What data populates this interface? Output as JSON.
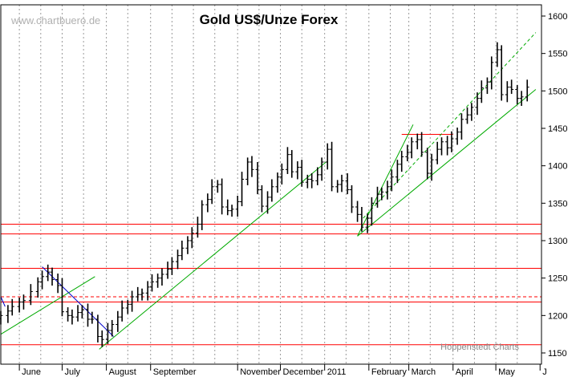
{
  "chart_data": {
    "type": "ohlc",
    "title": "Gold US$/Unze Forex",
    "watermark": "www.chartbuero.de",
    "footer": "Hoppenstedt Charts",
    "ylim": [
      1135,
      1615
    ],
    "yticks": [
      1150,
      1200,
      1250,
      1300,
      1350,
      1400,
      1450,
      1500,
      1550,
      1600
    ],
    "grid": "vertical-dashed",
    "x_labels": [
      "June",
      "July",
      "August",
      "September",
      "November",
      "December",
      "2011",
      "February",
      "March",
      "April",
      "May",
      "J"
    ],
    "colors": {
      "bars": "#000000",
      "support_lines": "#ff0000",
      "trend_lines": "#00aa00",
      "down_trend": "#0000cc"
    },
    "horizontal_levels": [
      1161,
      1218,
      1225,
      1263,
      1309,
      1322
    ],
    "support_segments": [
      {
        "from": "2011-02-24",
        "to": "2011-04-01",
        "y": 1442
      }
    ],
    "series": [
      {
        "values": [
          [
            "2010-05-19",
            1200
          ],
          [
            "2010-05-24",
            1206
          ],
          [
            "2010-05-27",
            1212
          ],
          [
            "2010-06-01",
            1218
          ],
          [
            "2010-06-04",
            1220
          ],
          [
            "2010-06-09",
            1232
          ],
          [
            "2010-06-14",
            1245
          ],
          [
            "2010-06-17",
            1252
          ],
          [
            "2010-06-21",
            1258
          ],
          [
            "2010-06-24",
            1248
          ],
          [
            "2010-06-28",
            1240
          ],
          [
            "2010-07-01",
            1205
          ],
          [
            "2010-07-05",
            1200
          ],
          [
            "2010-07-08",
            1198
          ],
          [
            "2010-07-12",
            1204
          ],
          [
            "2010-07-15",
            1208
          ],
          [
            "2010-07-19",
            1195
          ],
          [
            "2010-07-22",
            1195
          ],
          [
            "2010-07-26",
            1172
          ],
          [
            "2010-07-29",
            1168
          ],
          [
            "2010-08-02",
            1180
          ],
          [
            "2010-08-05",
            1188
          ],
          [
            "2010-08-09",
            1198
          ],
          [
            "2010-08-12",
            1210
          ],
          [
            "2010-08-16",
            1215
          ],
          [
            "2010-08-19",
            1225
          ],
          [
            "2010-08-23",
            1228
          ],
          [
            "2010-08-26",
            1230
          ],
          [
            "2010-08-30",
            1238
          ],
          [
            "2010-09-02",
            1245
          ],
          [
            "2010-09-06",
            1250
          ],
          [
            "2010-09-09",
            1255
          ],
          [
            "2010-09-13",
            1262
          ],
          [
            "2010-09-16",
            1272
          ],
          [
            "2010-09-20",
            1280
          ],
          [
            "2010-09-23",
            1290
          ],
          [
            "2010-09-27",
            1300
          ],
          [
            "2010-09-30",
            1310
          ],
          [
            "2010-10-04",
            1322
          ],
          [
            "2010-10-07",
            1348
          ],
          [
            "2010-10-11",
            1355
          ],
          [
            "2010-10-14",
            1372
          ],
          [
            "2010-10-18",
            1375
          ],
          [
            "2010-10-21",
            1345
          ],
          [
            "2010-10-25",
            1340
          ],
          [
            "2010-10-28",
            1342
          ],
          [
            "2010-11-01",
            1352
          ],
          [
            "2010-11-04",
            1382
          ],
          [
            "2010-11-08",
            1405
          ],
          [
            "2010-11-11",
            1395
          ],
          [
            "2010-11-15",
            1368
          ],
          [
            "2010-11-18",
            1346
          ],
          [
            "2010-11-22",
            1358
          ],
          [
            "2010-11-25",
            1372
          ],
          [
            "2010-11-29",
            1385
          ],
          [
            "2010-12-02",
            1395
          ],
          [
            "2010-12-06",
            1415
          ],
          [
            "2010-12-09",
            1392
          ],
          [
            "2010-12-13",
            1398
          ],
          [
            "2010-12-16",
            1378
          ],
          [
            "2010-12-20",
            1382
          ],
          [
            "2010-12-23",
            1380
          ],
          [
            "2010-12-27",
            1388
          ],
          [
            "2010-12-30",
            1405
          ],
          [
            "2011-01-03",
            1422
          ],
          [
            "2011-01-06",
            1372
          ],
          [
            "2011-01-10",
            1375
          ],
          [
            "2011-01-13",
            1380
          ],
          [
            "2011-01-17",
            1368
          ],
          [
            "2011-01-20",
            1345
          ],
          [
            "2011-01-24",
            1335
          ],
          [
            "2011-01-27",
            1318
          ],
          [
            "2011-01-31",
            1330
          ],
          [
            "2011-02-03",
            1350
          ],
          [
            "2011-02-07",
            1362
          ],
          [
            "2011-02-10",
            1365
          ],
          [
            "2011-02-14",
            1372
          ],
          [
            "2011-02-17",
            1385
          ],
          [
            "2011-02-21",
            1402
          ],
          [
            "2011-02-24",
            1412
          ],
          [
            "2011-02-28",
            1418
          ],
          [
            "2011-03-03",
            1432
          ],
          [
            "2011-03-07",
            1435
          ],
          [
            "2011-03-10",
            1418
          ],
          [
            "2011-03-14",
            1390
          ],
          [
            "2011-03-17",
            1408
          ],
          [
            "2011-03-21",
            1422
          ],
          [
            "2011-03-24",
            1432
          ],
          [
            "2011-03-28",
            1424
          ],
          [
            "2011-03-31",
            1436
          ],
          [
            "2011-04-04",
            1445
          ],
          [
            "2011-04-07",
            1462
          ],
          [
            "2011-04-11",
            1468
          ],
          [
            "2011-04-14",
            1478
          ],
          [
            "2011-04-18",
            1490
          ],
          [
            "2011-04-21",
            1504
          ],
          [
            "2011-04-25",
            1512
          ],
          [
            "2011-04-28",
            1538
          ],
          [
            "2011-05-02",
            1555
          ],
          [
            "2011-05-05",
            1495
          ],
          [
            "2011-05-09",
            1505
          ],
          [
            "2011-05-12",
            1502
          ],
          [
            "2011-05-16",
            1490
          ],
          [
            "2011-05-19",
            1492
          ],
          [
            "2011-05-23",
            1505
          ]
        ]
      }
    ]
  }
}
